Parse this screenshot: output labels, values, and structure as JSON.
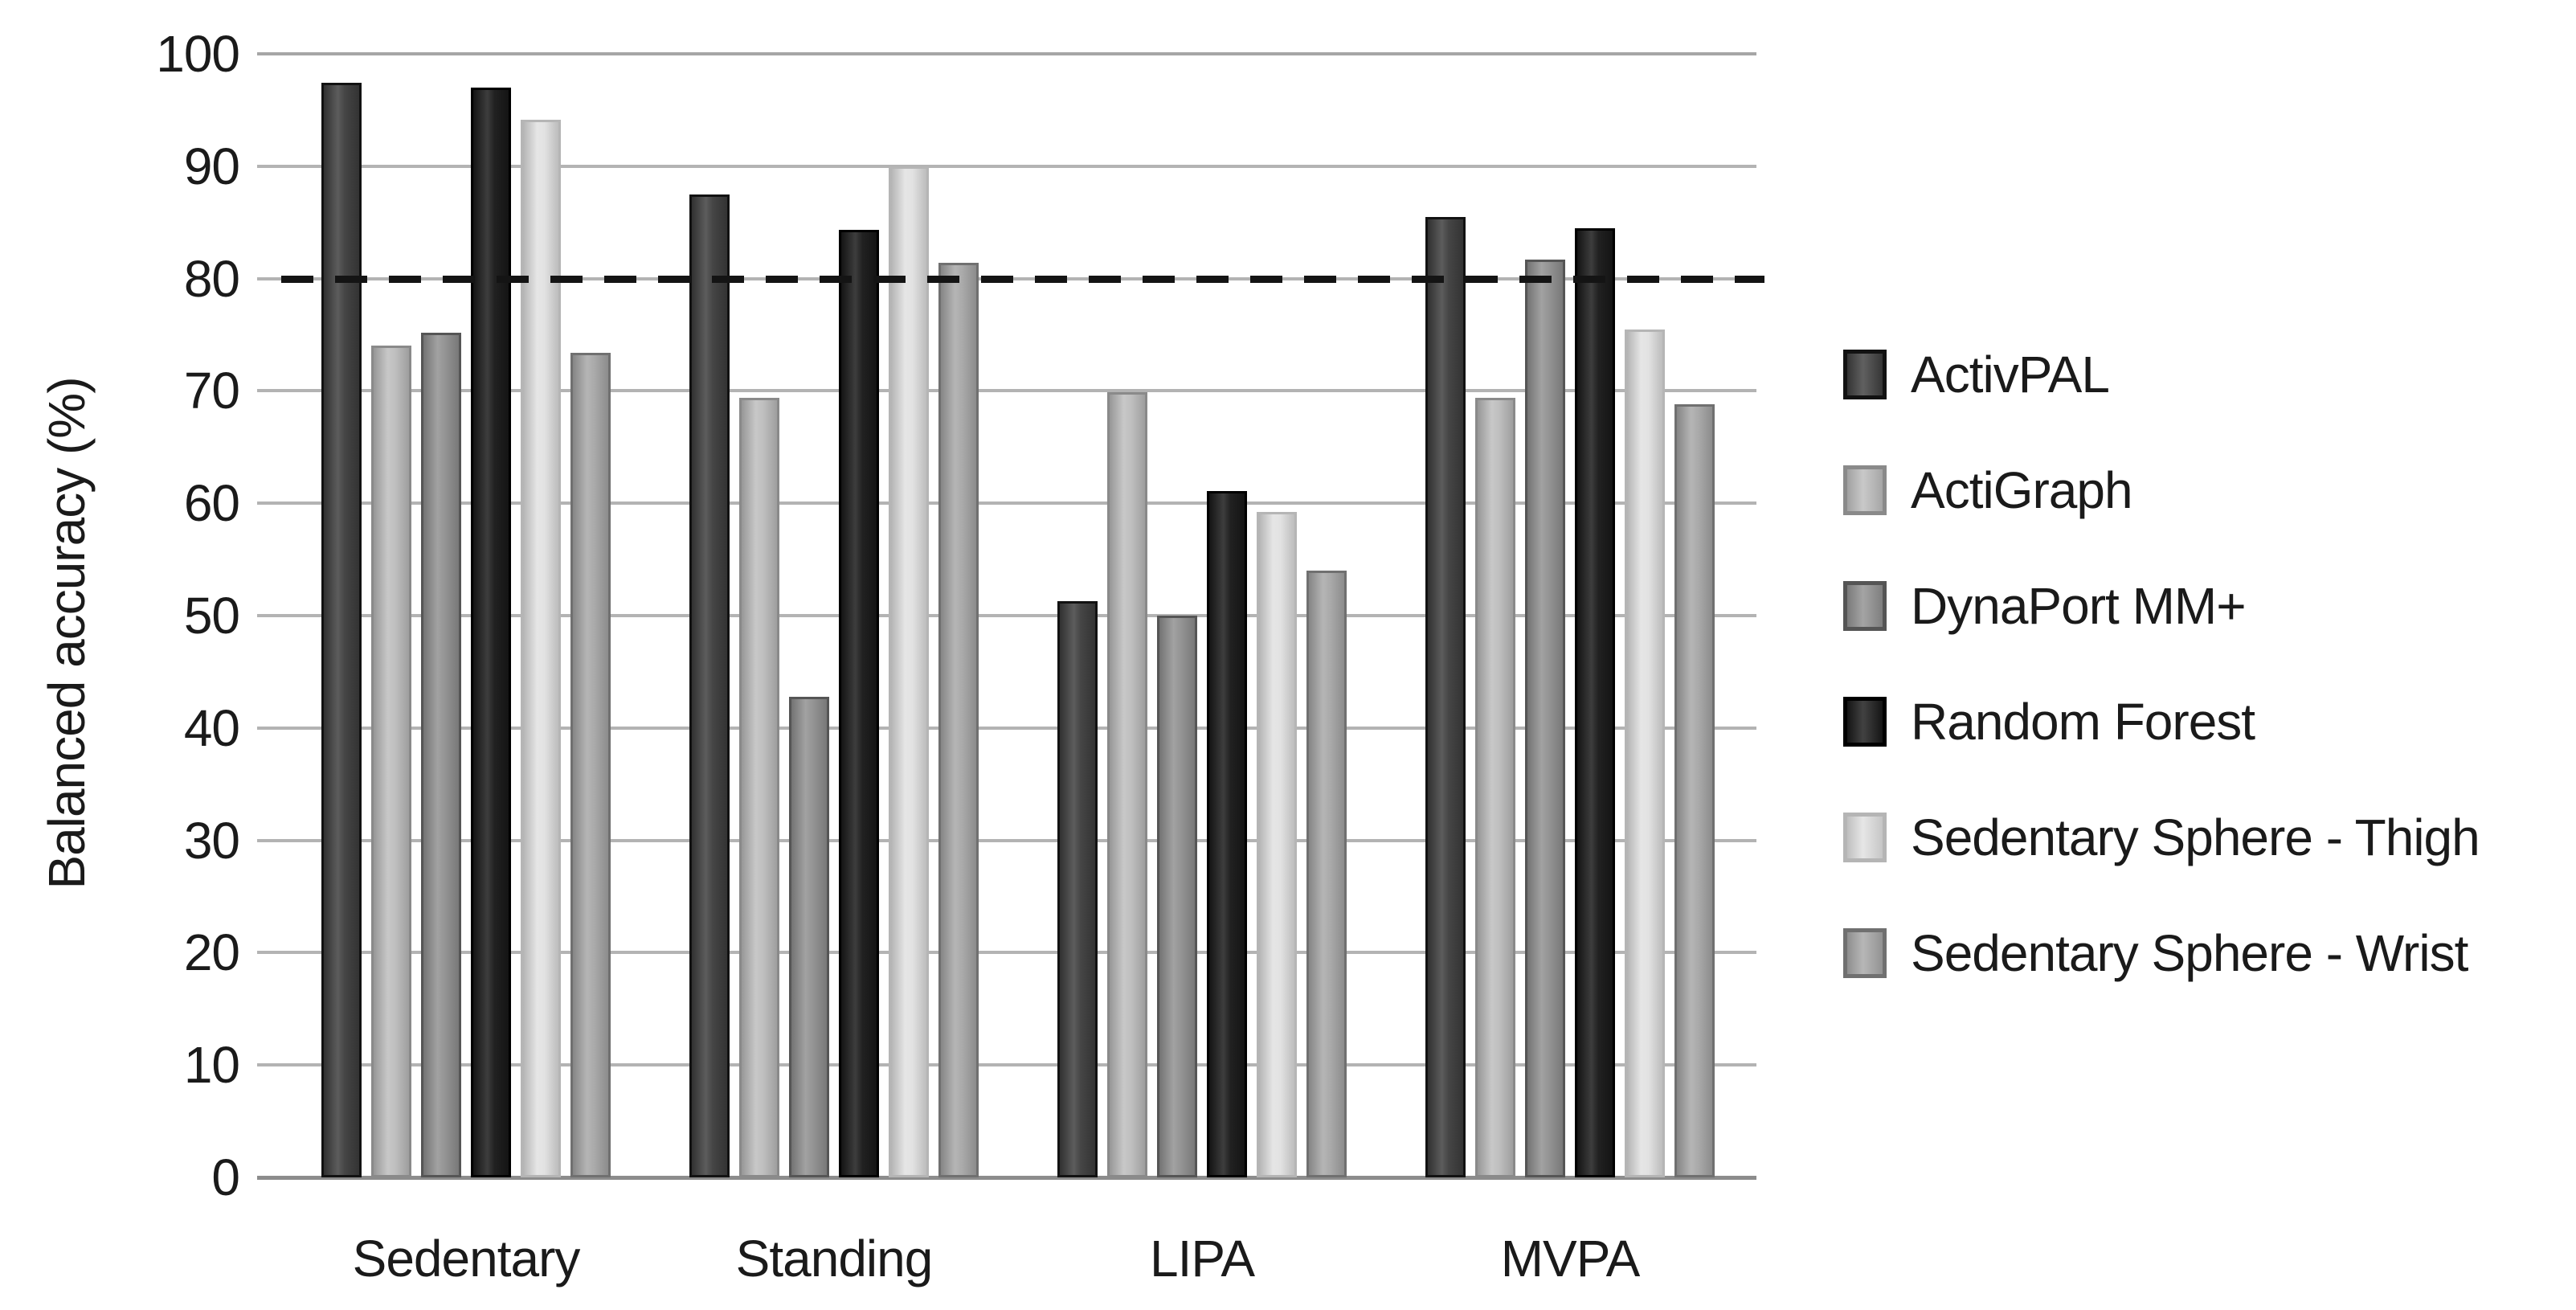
{
  "chart_data": {
    "type": "bar",
    "title": "",
    "xlabel": "",
    "ylabel": "Balanced accuracy (%)",
    "ylim": [
      0,
      100
    ],
    "yticks": [
      0,
      10,
      20,
      30,
      40,
      50,
      60,
      70,
      80,
      90,
      100
    ],
    "grid": "horizontal",
    "legend_position": "right",
    "reference_line": {
      "value": 80,
      "style": "dashed",
      "color": "#141414"
    },
    "categories": [
      "Sedentary",
      "Standing",
      "LIPA",
      "MVPA"
    ],
    "series": [
      {
        "name": "ActivPAL",
        "color": "#3d3d3d",
        "border_color": "#121212",
        "values": [
          97.4,
          87.5,
          51.3,
          85.5
        ]
      },
      {
        "name": "ActiGraph",
        "color": "#bdbdbd",
        "border_color": "#8a8a8a",
        "values": [
          74.0,
          69.4,
          69.9,
          69.4
        ]
      },
      {
        "name": "DynaPort MM+",
        "color": "#909090",
        "border_color": "#555555",
        "values": [
          75.2,
          42.8,
          50.0,
          81.7
        ]
      },
      {
        "name": "Random Forest",
        "color": "#181818",
        "border_color": "#000000",
        "values": [
          97.0,
          84.3,
          61.1,
          84.5
        ]
      },
      {
        "name": "Sedentary Sphere - Thigh",
        "color": "#e1e1e1",
        "border_color": "#b5b5b5",
        "values": [
          94.1,
          90.0,
          59.2,
          75.5
        ]
      },
      {
        "name": "Sedentary Sphere - Wrist",
        "color": "#a7a7a7",
        "border_color": "#707070",
        "values": [
          73.4,
          81.4,
          54.0,
          68.8
        ]
      }
    ],
    "colors": {
      "gridline": "#b3b3b3",
      "axis_line": "#8c8c8c",
      "text": "#1a1a1a",
      "background": "#ffffff"
    }
  }
}
